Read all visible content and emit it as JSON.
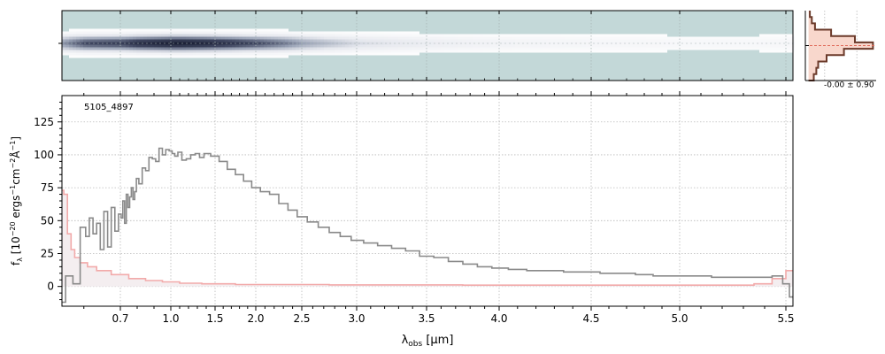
{
  "chart_data": [
    {
      "panel": "2d-spectrum",
      "type": "heatmap",
      "description_of_display": "2D spectrum image, dark trace across the middle, strongest at short wavelengths and fading toward long wavelengths",
      "colormap": [
        "#c3d8d8",
        "#ffffff",
        "#e6e8ee",
        "#9aa3b6",
        "#3f4660",
        "#1b2036"
      ],
      "x_range_um": [
        0.54,
        5.53
      ],
      "trace_intensity": {
        "x": [
          0.54,
          0.6,
          0.7,
          0.8,
          0.9,
          1.0,
          1.1,
          1.2,
          1.3,
          1.4,
          1.5,
          1.7,
          2.0,
          2.3,
          2.5,
          2.8,
          3.0,
          3.3,
          3.5,
          3.8,
          4.0,
          4.3,
          4.5,
          4.8,
          5.0,
          5.3,
          5.5
        ],
        "values": [
          0.55,
          0.75,
          0.8,
          0.9,
          0.95,
          1.0,
          1.0,
          0.98,
          0.96,
          0.94,
          0.9,
          0.85,
          0.75,
          0.62,
          0.5,
          0.38,
          0.3,
          0.24,
          0.2,
          0.16,
          0.14,
          0.12,
          0.11,
          0.1,
          0.09,
          0.09,
          0.1
        ]
      }
    },
    {
      "panel": "spectrum",
      "type": "line",
      "style": "step",
      "annotation": "5105_4897",
      "xlabel_main": "λ",
      "xlabel_sub": "obs",
      "xlabel_units": " [μm]",
      "ylabel_text": "f_λ [10^-20 ergs^-1 cm^-2 Å^-1]",
      "x_scale": "nonlinear (compressed toward long wavelengths)",
      "xlim": [
        0.54,
        5.53
      ],
      "ylim": [
        -15,
        145
      ],
      "xticks": [
        0.7,
        1.0,
        1.5,
        2.0,
        2.5,
        3.0,
        3.5,
        4.0,
        4.5,
        5.0,
        5.5
      ],
      "xtick_labels": [
        "0.7",
        "1.0",
        "1.5",
        "2.0",
        "2.5",
        "3.0",
        "3.5",
        "4.0",
        "4.5",
        "5.0",
        "5.5"
      ],
      "yticks": [
        0,
        25,
        50,
        75,
        100,
        125
      ],
      "ytick_labels": [
        "0",
        "25",
        "50",
        "75",
        "100",
        "125"
      ],
      "grid": true,
      "series": [
        {
          "color": "#8a8a8a",
          "x": [
            0.54,
            0.56,
            0.58,
            0.6,
            0.61,
            0.62,
            0.63,
            0.64,
            0.65,
            0.66,
            0.67,
            0.68,
            0.69,
            0.7,
            0.71,
            0.72,
            0.73,
            0.74,
            0.75,
            0.76,
            0.77,
            0.78,
            0.79,
            0.8,
            0.82,
            0.84,
            0.86,
            0.88,
            0.9,
            0.92,
            0.94,
            0.96,
            0.98,
            1.0,
            1.03,
            1.06,
            1.1,
            1.15,
            1.2,
            1.25,
            1.3,
            1.35,
            1.4,
            1.5,
            1.6,
            1.7,
            1.8,
            1.9,
            2.0,
            2.1,
            2.2,
            2.3,
            2.4,
            2.5,
            2.6,
            2.7,
            2.8,
            2.9,
            3.0,
            3.1,
            3.2,
            3.3,
            3.4,
            3.5,
            3.6,
            3.7,
            3.8,
            3.9,
            4.0,
            4.1,
            4.2,
            4.3,
            4.4,
            4.5,
            4.6,
            4.7,
            4.8,
            4.9,
            5.0,
            5.1,
            5.2,
            5.3,
            5.4,
            5.47,
            5.5,
            5.53
          ],
          "values": [
            -12,
            8,
            2,
            45,
            38,
            52,
            40,
            48,
            28,
            57,
            30,
            60,
            42,
            55,
            52,
            65,
            48,
            70,
            60,
            68,
            75,
            66,
            72,
            82,
            78,
            90,
            88,
            98,
            97,
            95,
            105,
            100,
            104,
            103,
            101,
            99,
            102,
            96,
            97,
            100,
            101,
            98,
            101,
            99,
            95,
            89,
            85,
            80,
            75,
            72,
            70,
            63,
            58,
            53,
            49,
            45,
            41,
            38,
            35,
            33,
            31,
            29,
            27,
            23,
            22,
            19,
            17,
            15,
            14,
            13,
            12,
            12,
            11,
            11,
            10,
            10,
            9,
            8,
            8,
            8,
            7,
            7,
            7,
            8,
            2,
            -8
          ]
        },
        {
          "color": "#f2aaaa",
          "x": [
            0.54,
            0.55,
            0.56,
            0.57,
            0.58,
            0.6,
            0.62,
            0.65,
            0.7,
            0.8,
            0.9,
            1.0,
            1.2,
            1.5,
            2.0,
            2.5,
            3.0,
            3.5,
            4.0,
            4.5,
            5.0,
            5.3,
            5.4,
            5.47,
            5.53
          ],
          "values": [
            73,
            70,
            40,
            28,
            22,
            18,
            15,
            12,
            9,
            6,
            4.5,
            3.5,
            2.5,
            2,
            1.5,
            1.5,
            1.2,
            1.2,
            1,
            1,
            1,
            1,
            2,
            6,
            12
          ]
        }
      ]
    },
    {
      "panel": "cross-dispersion-profile",
      "type": "line",
      "style": "step",
      "annotation": "-0.00 ± 0.90",
      "fill_color": "#f8d7cc",
      "line_color": "#6b3a2a",
      "offset_line_color": "#e06a5a",
      "y": [
        -5,
        -4,
        -3,
        -2,
        -1,
        0,
        1,
        2,
        3,
        4,
        5
      ],
      "values": [
        0.08,
        0.12,
        0.15,
        0.28,
        0.55,
        1.0,
        0.72,
        0.35,
        0.1,
        0.05,
        0.02
      ],
      "ylim": [
        -5.5,
        5.5
      ],
      "xlim": [
        -0.05,
        1.05
      ]
    }
  ]
}
